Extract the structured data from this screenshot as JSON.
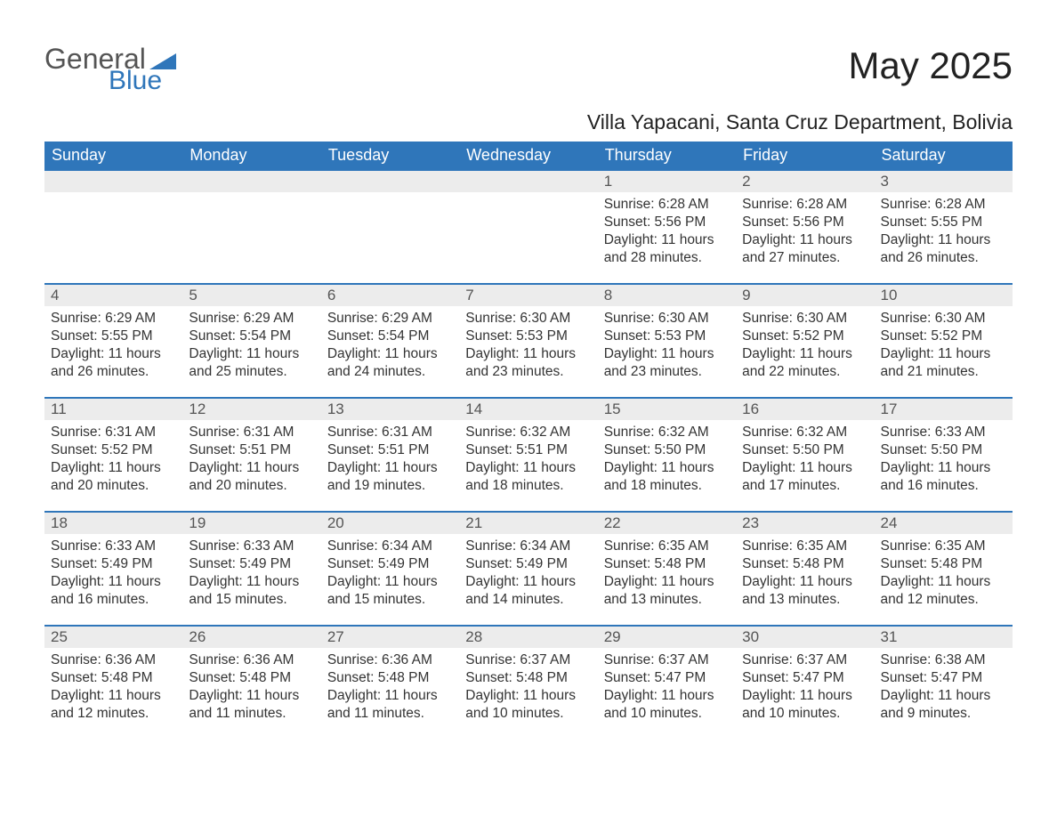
{
  "logo": {
    "text1": "General",
    "text2": "Blue",
    "triangle_color": "#2f76ba"
  },
  "title": "May 2025",
  "location": "Villa Yapacani, Santa Cruz Department, Bolivia",
  "colors": {
    "header_bg": "#2f76ba",
    "header_text": "#ffffff",
    "daynum_bg": "#ececec",
    "daynum_border": "#2f76ba",
    "body_text": "#333333",
    "page_bg": "#ffffff"
  },
  "weekdays": [
    "Sunday",
    "Monday",
    "Tuesday",
    "Wednesday",
    "Thursday",
    "Friday",
    "Saturday"
  ],
  "weeks": [
    [
      {
        "empty": true
      },
      {
        "empty": true
      },
      {
        "empty": true
      },
      {
        "empty": true
      },
      {
        "num": "1",
        "sunrise": "6:28 AM",
        "sunset": "5:56 PM",
        "daylight": "11 hours and 28 minutes."
      },
      {
        "num": "2",
        "sunrise": "6:28 AM",
        "sunset": "5:56 PM",
        "daylight": "11 hours and 27 minutes."
      },
      {
        "num": "3",
        "sunrise": "6:28 AM",
        "sunset": "5:55 PM",
        "daylight": "11 hours and 26 minutes."
      }
    ],
    [
      {
        "num": "4",
        "sunrise": "6:29 AM",
        "sunset": "5:55 PM",
        "daylight": "11 hours and 26 minutes."
      },
      {
        "num": "5",
        "sunrise": "6:29 AM",
        "sunset": "5:54 PM",
        "daylight": "11 hours and 25 minutes."
      },
      {
        "num": "6",
        "sunrise": "6:29 AM",
        "sunset": "5:54 PM",
        "daylight": "11 hours and 24 minutes."
      },
      {
        "num": "7",
        "sunrise": "6:30 AM",
        "sunset": "5:53 PM",
        "daylight": "11 hours and 23 minutes."
      },
      {
        "num": "8",
        "sunrise": "6:30 AM",
        "sunset": "5:53 PM",
        "daylight": "11 hours and 23 minutes."
      },
      {
        "num": "9",
        "sunrise": "6:30 AM",
        "sunset": "5:52 PM",
        "daylight": "11 hours and 22 minutes."
      },
      {
        "num": "10",
        "sunrise": "6:30 AM",
        "sunset": "5:52 PM",
        "daylight": "11 hours and 21 minutes."
      }
    ],
    [
      {
        "num": "11",
        "sunrise": "6:31 AM",
        "sunset": "5:52 PM",
        "daylight": "11 hours and 20 minutes."
      },
      {
        "num": "12",
        "sunrise": "6:31 AM",
        "sunset": "5:51 PM",
        "daylight": "11 hours and 20 minutes."
      },
      {
        "num": "13",
        "sunrise": "6:31 AM",
        "sunset": "5:51 PM",
        "daylight": "11 hours and 19 minutes."
      },
      {
        "num": "14",
        "sunrise": "6:32 AM",
        "sunset": "5:51 PM",
        "daylight": "11 hours and 18 minutes."
      },
      {
        "num": "15",
        "sunrise": "6:32 AM",
        "sunset": "5:50 PM",
        "daylight": "11 hours and 18 minutes."
      },
      {
        "num": "16",
        "sunrise": "6:32 AM",
        "sunset": "5:50 PM",
        "daylight": "11 hours and 17 minutes."
      },
      {
        "num": "17",
        "sunrise": "6:33 AM",
        "sunset": "5:50 PM",
        "daylight": "11 hours and 16 minutes."
      }
    ],
    [
      {
        "num": "18",
        "sunrise": "6:33 AM",
        "sunset": "5:49 PM",
        "daylight": "11 hours and 16 minutes."
      },
      {
        "num": "19",
        "sunrise": "6:33 AM",
        "sunset": "5:49 PM",
        "daylight": "11 hours and 15 minutes."
      },
      {
        "num": "20",
        "sunrise": "6:34 AM",
        "sunset": "5:49 PM",
        "daylight": "11 hours and 15 minutes."
      },
      {
        "num": "21",
        "sunrise": "6:34 AM",
        "sunset": "5:49 PM",
        "daylight": "11 hours and 14 minutes."
      },
      {
        "num": "22",
        "sunrise": "6:35 AM",
        "sunset": "5:48 PM",
        "daylight": "11 hours and 13 minutes."
      },
      {
        "num": "23",
        "sunrise": "6:35 AM",
        "sunset": "5:48 PM",
        "daylight": "11 hours and 13 minutes."
      },
      {
        "num": "24",
        "sunrise": "6:35 AM",
        "sunset": "5:48 PM",
        "daylight": "11 hours and 12 minutes."
      }
    ],
    [
      {
        "num": "25",
        "sunrise": "6:36 AM",
        "sunset": "5:48 PM",
        "daylight": "11 hours and 12 minutes."
      },
      {
        "num": "26",
        "sunrise": "6:36 AM",
        "sunset": "5:48 PM",
        "daylight": "11 hours and 11 minutes."
      },
      {
        "num": "27",
        "sunrise": "6:36 AM",
        "sunset": "5:48 PM",
        "daylight": "11 hours and 11 minutes."
      },
      {
        "num": "28",
        "sunrise": "6:37 AM",
        "sunset": "5:48 PM",
        "daylight": "11 hours and 10 minutes."
      },
      {
        "num": "29",
        "sunrise": "6:37 AM",
        "sunset": "5:47 PM",
        "daylight": "11 hours and 10 minutes."
      },
      {
        "num": "30",
        "sunrise": "6:37 AM",
        "sunset": "5:47 PM",
        "daylight": "11 hours and 10 minutes."
      },
      {
        "num": "31",
        "sunrise": "6:38 AM",
        "sunset": "5:47 PM",
        "daylight": "11 hours and 9 minutes."
      }
    ]
  ],
  "labels": {
    "sunrise": "Sunrise: ",
    "sunset": "Sunset: ",
    "daylight": "Daylight: "
  }
}
